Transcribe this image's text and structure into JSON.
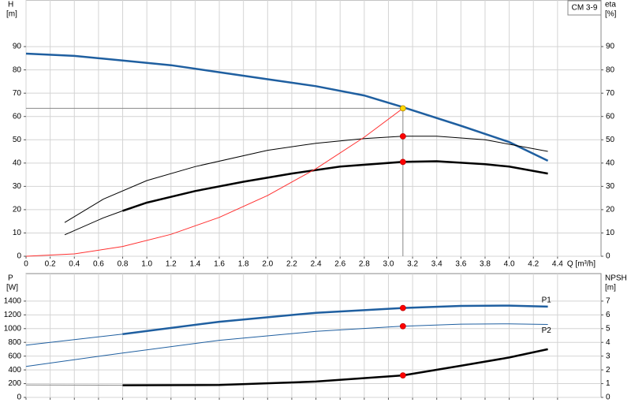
{
  "chart_data": [
    {
      "type": "line",
      "title": "CM 3-9",
      "ylabel": "H",
      "yunit": "[m]",
      "y2label": "eta",
      "y2unit": "[%]",
      "xlabel": "Q [m³/h]",
      "xlim": [
        0,
        4.76
      ],
      "xticks": [
        0,
        0.2,
        0.4,
        0.6,
        0.8,
        {
          "value": 1,
          "label": "1.0"
        },
        1.2,
        1.4,
        1.6,
        1.8,
        {
          "value": 2,
          "label": "2.0"
        },
        2.2,
        2.4,
        2.6,
        2.8,
        {
          "value": 3,
          "label": "3.0"
        },
        3.2,
        3.4,
        3.6,
        3.8,
        {
          "value": 4,
          "label": "4.0"
        },
        4.2,
        4.4
      ],
      "ylim": [
        0,
        110
      ],
      "yticks": [
        0,
        10,
        20,
        30,
        40,
        50,
        60,
        70,
        80,
        90
      ],
      "y2lim": [
        0,
        110
      ],
      "y2ticks": [
        0,
        10,
        20,
        30,
        40,
        50,
        60,
        70,
        80,
        90
      ],
      "grid": true,
      "crosshair": true,
      "series": [
        {
          "color": "#1f5fa0",
          "width": 2.5,
          "x": [
            0,
            0.4,
            0.8,
            1.2,
            1.6,
            2.0,
            2.4,
            2.8,
            3.12,
            3.6,
            4.0,
            4.32
          ],
          "values": [
            87,
            86,
            84,
            82,
            79,
            76,
            73,
            69,
            64,
            56,
            49,
            41
          ]
        },
        {
          "color": "#000000",
          "width": 1,
          "axis": "y2",
          "x": [
            0.32,
            0.64,
            1.0,
            1.4,
            2.0,
            2.4,
            2.8,
            3.12,
            3.4,
            3.8,
            4.32
          ],
          "values": [
            14.5,
            24.5,
            32.5,
            38.5,
            45.5,
            48.5,
            50.5,
            51.5,
            51.5,
            50,
            45
          ]
        },
        {
          "color": "#000000",
          "width": 1,
          "axis": "y2",
          "x": [
            0.32,
            0.64,
            0.8
          ],
          "values": [
            9.2,
            16.5,
            19.5
          ]
        },
        {
          "color": "#000000",
          "width": 2.5,
          "axis": "y2",
          "x": [
            0.8,
            1.0,
            1.4,
            1.8,
            2.2,
            2.6,
            3.12,
            3.4,
            3.8,
            4.0,
            4.32
          ],
          "values": [
            19.5,
            23,
            28,
            32,
            35.5,
            38.5,
            40.5,
            40.8,
            39.5,
            38.5,
            35.5
          ]
        },
        {
          "color": "#ff3030",
          "width": 1,
          "x": [
            0,
            0.4,
            0.8,
            1.2,
            1.6,
            2.0,
            2.4,
            2.8,
            3.12
          ],
          "values": [
            0,
            1,
            4.2,
            9.4,
            16.7,
            26.1,
            37.6,
            51.1,
            63.5
          ]
        }
      ],
      "points": [
        {
          "x": 3.12,
          "y": 63.5,
          "color": "#ffd700"
        },
        {
          "x": 3.12,
          "y": 51.5,
          "color": "#ff0000",
          "axis": "y2"
        },
        {
          "x": 3.12,
          "y": 40.5,
          "color": "#ff0000",
          "axis": "y2"
        }
      ]
    },
    {
      "type": "line",
      "ylabel": "P",
      "yunit": "[W]",
      "y2label": "NPSH",
      "y2unit": "[m]",
      "xlim": [
        0,
        4.76
      ],
      "ylim": [
        0,
        1800
      ],
      "yticks": [
        0,
        200,
        400,
        600,
        800,
        1000,
        1200,
        1400
      ],
      "y2lim": [
        0,
        9
      ],
      "y2ticks": [
        0,
        1,
        2,
        3,
        4,
        5,
        6,
        7
      ],
      "grid": true,
      "series": [
        {
          "color": "#1f5fa0",
          "width": 1,
          "x": [
            0,
            0.8
          ],
          "values": [
            760,
            920
          ]
        },
        {
          "name": "P1",
          "color": "#1f5fa0",
          "width": 2.5,
          "x": [
            0.8,
            1.6,
            2.4,
            3.12,
            3.6,
            4.0,
            4.32
          ],
          "values": [
            920,
            1100,
            1230,
            1300,
            1330,
            1335,
            1320
          ]
        },
        {
          "name": "P2",
          "color": "#1f5fa0",
          "width": 1,
          "x": [
            0,
            0.8,
            1.6,
            2.4,
            3.12,
            3.6,
            4.0,
            4.32
          ],
          "values": [
            450,
            645,
            830,
            960,
            1035,
            1065,
            1070,
            1060
          ]
        },
        {
          "color": "#888888",
          "width": 1,
          "axis": "y2",
          "x": [
            0,
            0.8
          ],
          "values": [
            0.9,
            0.88
          ]
        },
        {
          "color": "#000000",
          "width": 2.5,
          "axis": "y2",
          "x": [
            0.8,
            1.6,
            2.4,
            3.12,
            3.6,
            4.0,
            4.32
          ],
          "values": [
            0.88,
            0.9,
            1.15,
            1.6,
            2.3,
            2.9,
            3.5
          ]
        }
      ],
      "points": [
        {
          "x": 3.12,
          "y": 1300,
          "color": "#ff0000"
        },
        {
          "x": 3.12,
          "y": 1035,
          "color": "#ff0000"
        },
        {
          "x": 3.12,
          "y": 1.6,
          "color": "#ff0000",
          "axis": "y2"
        }
      ]
    }
  ]
}
